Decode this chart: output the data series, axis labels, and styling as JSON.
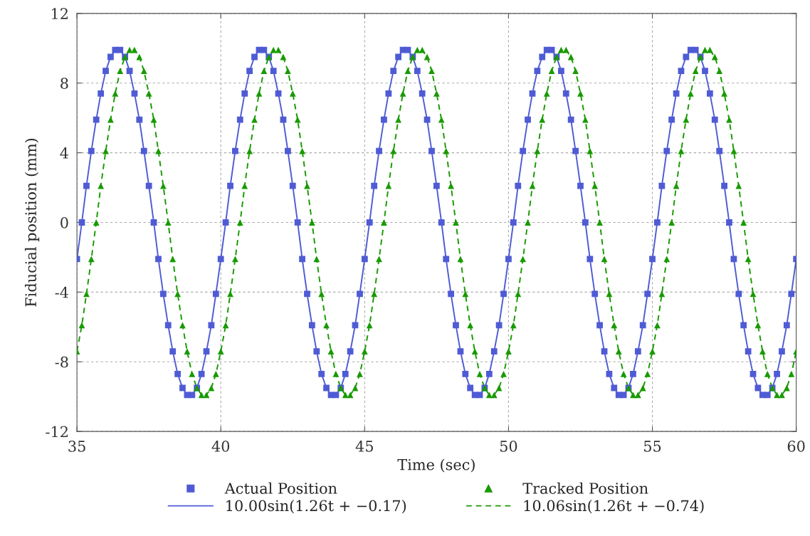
{
  "chart_data": {
    "type": "scatter",
    "xlabel": "Time (sec)",
    "ylabel": "Fiducial position (mm)",
    "x": [
      35,
      35.17,
      35.33,
      35.5,
      35.67,
      35.83,
      36,
      36.17,
      36.33,
      36.5,
      36.67,
      36.83,
      37,
      37.17,
      37.33,
      37.5,
      37.67,
      37.83,
      38,
      38.17,
      38.33,
      38.5,
      38.67,
      38.83,
      39,
      39.17,
      39.33,
      39.5,
      39.67,
      39.83,
      40,
      40.17,
      40.33,
      40.5,
      40.67,
      40.83,
      41,
      41.17,
      41.33,
      41.5,
      41.67,
      41.83,
      42,
      42.17,
      42.33,
      42.5,
      42.67,
      42.83,
      43,
      43.17,
      43.33,
      43.5,
      43.67,
      43.83,
      44,
      44.17,
      44.33,
      44.5,
      44.67,
      44.83,
      45,
      45.17,
      45.33,
      45.5,
      45.67,
      45.83,
      46,
      46.17,
      46.33,
      46.5,
      46.67,
      46.83,
      47,
      47.17,
      47.33,
      47.5,
      47.67,
      47.83,
      48,
      48.17,
      48.33,
      48.5,
      48.67,
      48.83,
      49,
      49.17,
      49.33,
      49.5,
      49.67,
      49.83,
      50,
      50.17,
      50.33,
      50.5,
      50.67,
      50.83,
      51,
      51.17,
      51.33,
      51.5,
      51.67,
      51.83,
      52,
      52.17,
      52.33,
      52.5,
      52.67,
      52.83,
      53,
      53.17,
      53.33,
      53.5,
      53.67,
      53.83,
      54,
      54.17,
      54.33,
      54.5,
      54.67,
      54.83,
      55,
      55.17,
      55.33,
      55.5,
      55.67,
      55.83,
      56,
      56.17,
      56.33,
      56.5,
      56.67,
      56.83,
      57,
      57.17,
      57.33,
      57.5,
      57.67,
      57.83,
      58,
      58.17,
      58.33,
      58.5,
      58.67,
      58.83,
      59,
      59.17,
      59.33,
      59.5,
      59.67,
      59.83,
      60
    ],
    "series": [
      {
        "name": "Actual Position",
        "marker": "square",
        "color": "#4f5bd5",
        "values": [
          -2.1,
          0,
          2.1,
          4.1,
          5.9,
          7.4,
          8.7,
          9.5,
          9.9,
          9.9,
          9.5,
          8.7,
          7.4,
          5.9,
          4.1,
          2.1,
          0,
          -2.1,
          -4.1,
          -5.9,
          -7.4,
          -8.7,
          -9.5,
          -9.9,
          -9.9,
          -9.5,
          -8.7,
          -7.4,
          -5.9,
          -4.1,
          -2.1,
          0,
          2.1,
          4.1,
          5.9,
          7.4,
          8.7,
          9.5,
          9.9,
          9.9,
          9.5,
          8.7,
          7.4,
          5.9,
          4.1,
          2.1,
          0,
          -2.1,
          -4.1,
          -5.9,
          -7.4,
          -8.7,
          -9.5,
          -9.9,
          -9.9,
          -9.5,
          -8.7,
          -7.4,
          -5.9,
          -4.1,
          -2.1,
          0,
          2.1,
          4.1,
          5.9,
          7.4,
          8.7,
          9.5,
          9.9,
          9.9,
          9.5,
          8.7,
          7.4,
          5.9,
          4.1,
          2.1,
          0,
          -2.1,
          -4.1,
          -5.9,
          -7.4,
          -8.7,
          -9.5,
          -9.9,
          -9.9,
          -9.5,
          -8.7,
          -7.4,
          -5.9,
          -4.1,
          -2.1,
          0,
          2.1,
          4.1,
          5.9,
          7.4,
          8.7,
          9.5,
          9.9,
          9.9,
          9.5,
          8.7,
          7.4,
          5.9,
          4.1,
          2.1,
          0,
          -2.1,
          -4.1,
          -5.9,
          -7.4,
          -8.7,
          -9.5,
          -9.9,
          -9.9,
          -9.5,
          -8.7,
          -7.4,
          -5.9,
          -4.1,
          -2.1,
          0,
          2.1,
          4.1,
          5.9,
          7.4,
          8.7,
          9.5,
          9.9,
          9.9,
          9.5,
          8.7,
          7.4,
          5.9,
          4.1,
          2.1,
          0,
          -2.1,
          -4.1,
          -5.9,
          -7.4,
          -8.7,
          -9.5,
          -9.9,
          -9.9,
          -9.5,
          -8.7,
          -7.4,
          -5.9,
          -4.1,
          -2.1
        ]
      },
      {
        "name": "10.00sin(1.26t + −0.17)",
        "type": "line",
        "line_style": "solid",
        "color": "#4f5bd5",
        "values": [
          -2.1,
          0,
          2.1,
          4.1,
          5.9,
          7.4,
          8.7,
          9.5,
          9.9,
          9.9,
          9.5,
          8.7,
          7.4,
          5.9,
          4.1,
          2.1,
          0,
          -2.1,
          -4.1,
          -5.9,
          -7.4,
          -8.7,
          -9.5,
          -9.9,
          -9.9,
          -9.5,
          -8.7,
          -7.4,
          -5.9,
          -4.1,
          -2.1,
          0,
          2.1,
          4.1,
          5.9,
          7.4,
          8.7,
          9.5,
          9.9,
          9.9,
          9.5,
          8.7,
          7.4,
          5.9,
          4.1,
          2.1,
          0,
          -2.1,
          -4.1,
          -5.9,
          -7.4,
          -8.7,
          -9.5,
          -9.9,
          -9.9,
          -9.5,
          -8.7,
          -7.4,
          -5.9,
          -4.1,
          -2.1,
          0,
          2.1,
          4.1,
          5.9,
          7.4,
          8.7,
          9.5,
          9.9,
          9.9,
          9.5,
          8.7,
          7.4,
          5.9,
          4.1,
          2.1,
          0,
          -2.1,
          -4.1,
          -5.9,
          -7.4,
          -8.7,
          -9.5,
          -9.9,
          -9.9,
          -9.5,
          -8.7,
          -7.4,
          -5.9,
          -4.1,
          -2.1,
          0,
          2.1,
          4.1,
          5.9,
          7.4,
          8.7,
          9.5,
          9.9,
          9.9,
          9.5,
          8.7,
          7.4,
          5.9,
          4.1,
          2.1,
          0,
          -2.1,
          -4.1,
          -5.9,
          -7.4,
          -8.7,
          -9.5,
          -9.9,
          -9.9,
          -9.5,
          -8.7,
          -7.4,
          -5.9,
          -4.1,
          -2.1,
          0,
          2.1,
          4.1,
          5.9,
          7.4,
          8.7,
          9.5,
          9.9,
          9.9,
          9.5,
          8.7,
          7.4,
          5.9,
          4.1,
          2.1,
          0,
          -2.1,
          -4.1,
          -5.9,
          -7.4,
          -8.7,
          -9.5,
          -9.9,
          -9.9,
          -9.5,
          -8.7,
          -7.4,
          -5.9,
          -4.1,
          -2.1
        ]
      },
      {
        "name": "Tracked Position",
        "marker": "triangle",
        "color": "#189a00",
        "values": [
          -7.4,
          -5.9,
          -4.1,
          -2.1,
          0,
          2.1,
          4.1,
          5.9,
          7.4,
          8.7,
          9.5,
          9.9,
          9.9,
          9.5,
          8.7,
          7.4,
          5.9,
          4.1,
          2.1,
          0,
          -2.1,
          -4.1,
          -5.9,
          -7.4,
          -8.7,
          -9.5,
          -9.9,
          -9.9,
          -9.5,
          -8.7,
          -7.4,
          -5.9,
          -4.1,
          -2.1,
          0,
          2.1,
          4.1,
          5.9,
          7.4,
          8.7,
          9.5,
          9.9,
          9.9,
          9.5,
          8.7,
          7.4,
          5.9,
          4.1,
          2.1,
          0,
          -2.1,
          -4.1,
          -5.9,
          -7.4,
          -8.7,
          -9.5,
          -9.9,
          -9.9,
          -9.5,
          -8.7,
          -7.4,
          -5.9,
          -4.1,
          -2.1,
          0,
          2.1,
          4.1,
          5.9,
          7.4,
          8.7,
          9.5,
          9.9,
          9.9,
          9.5,
          8.7,
          7.4,
          5.9,
          4.1,
          2.1,
          0,
          -2.1,
          -4.1,
          -5.9,
          -7.4,
          -8.7,
          -9.5,
          -9.9,
          -9.9,
          -9.5,
          -8.7,
          -7.4,
          -5.9,
          -4.1,
          -2.1,
          0,
          2.1,
          4.1,
          5.9,
          7.4,
          8.7,
          9.5,
          9.9,
          9.9,
          9.5,
          8.7,
          7.4,
          5.9,
          4.1,
          2.1,
          0,
          -2.1,
          -4.1,
          -5.9,
          -7.4,
          -8.7,
          -9.5,
          -9.9,
          -9.9,
          -9.5,
          -8.7,
          -7.4,
          -5.9,
          -4.1,
          -2.1,
          0,
          2.1,
          4.1,
          5.9,
          7.4,
          8.7,
          9.5,
          9.9,
          9.9,
          9.5,
          8.7,
          7.4,
          5.9,
          4.1,
          2.1,
          0,
          -2.1,
          -4.1,
          -5.9,
          -7.4,
          -8.7,
          -9.5,
          -9.9,
          -9.9,
          -9.5,
          -8.7,
          -7.4
        ]
      },
      {
        "name": "10.06sin(1.26t + −0.74)",
        "type": "line",
        "line_style": "dashed",
        "color": "#189a00",
        "values": [
          -7.4,
          -5.9,
          -4.1,
          -2.1,
          0,
          2.1,
          4.1,
          5.9,
          7.4,
          8.7,
          9.5,
          9.9,
          9.9,
          9.5,
          8.7,
          7.4,
          5.9,
          4.1,
          2.1,
          0,
          -2.1,
          -4.1,
          -5.9,
          -7.4,
          -8.7,
          -9.5,
          -9.9,
          -9.9,
          -9.5,
          -8.7,
          -7.4,
          -5.9,
          -4.1,
          -2.1,
          0,
          2.1,
          4.1,
          5.9,
          7.4,
          8.7,
          9.5,
          9.9,
          9.9,
          9.5,
          8.7,
          7.4,
          5.9,
          4.1,
          2.1,
          0,
          -2.1,
          -4.1,
          -5.9,
          -7.4,
          -8.7,
          -9.5,
          -9.9,
          -9.9,
          -9.5,
          -8.7,
          -7.4,
          -5.9,
          -4.1,
          -2.1,
          0,
          2.1,
          4.1,
          5.9,
          7.4,
          8.7,
          9.5,
          9.9,
          9.9,
          9.5,
          8.7,
          7.4,
          5.9,
          4.1,
          2.1,
          0,
          -2.1,
          -4.1,
          -5.9,
          -7.4,
          -8.7,
          -9.5,
          -9.9,
          -9.9,
          -9.5,
          -8.7,
          -7.4,
          -5.9,
          -4.1,
          -2.1,
          0,
          2.1,
          4.1,
          5.9,
          7.4,
          8.7,
          9.5,
          9.9,
          9.9,
          9.5,
          8.7,
          7.4,
          5.9,
          4.1,
          2.1,
          0,
          -2.1,
          -4.1,
          -5.9,
          -7.4,
          -8.7,
          -9.5,
          -9.9,
          -9.9,
          -9.5,
          -8.7,
          -7.4,
          -5.9,
          -4.1,
          -2.1,
          0,
          2.1,
          4.1,
          5.9,
          7.4,
          8.7,
          9.5,
          9.9,
          9.9,
          9.5,
          8.7,
          7.4,
          5.9,
          4.1,
          2.1,
          0,
          -2.1,
          -4.1,
          -5.9,
          -7.4,
          -8.7,
          -9.5,
          -9.9,
          -9.9,
          -9.5,
          -8.7,
          -7.4
        ]
      }
    ],
    "xlim": [
      35,
      60
    ],
    "xticks": [
      35,
      40,
      45,
      50,
      55,
      60
    ],
    "ylim": [
      -12,
      12
    ],
    "yticks": [
      -12,
      -8,
      -4,
      0,
      4,
      8,
      12
    ],
    "grid": true,
    "legend": "bottom"
  }
}
